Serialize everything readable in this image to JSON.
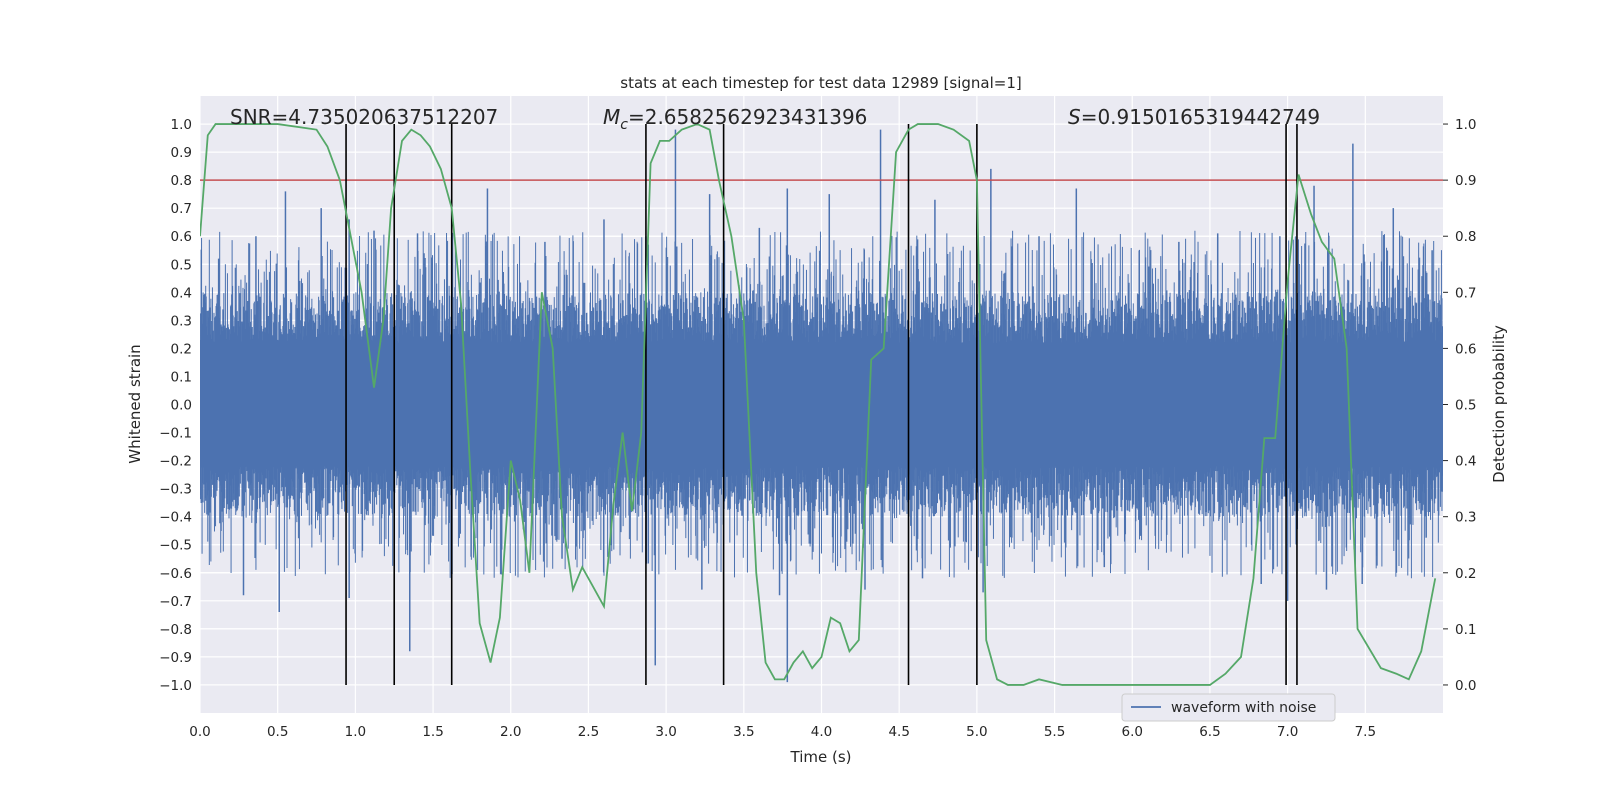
{
  "chart_data": {
    "type": "line",
    "title": "stats at each timestep for test data 12989 [signal=1]",
    "xlabel": "Time (s)",
    "ylabel": "Whitened strain",
    "y2label": "Detection probability",
    "xlim": [
      0,
      8
    ],
    "ylim": [
      -1.1,
      1.1
    ],
    "y2lim": [
      -0.05,
      1.05
    ],
    "xticks": [
      0.0,
      0.5,
      1.0,
      1.5,
      2.0,
      2.5,
      3.0,
      3.5,
      4.0,
      4.5,
      5.0,
      5.5,
      6.0,
      6.5,
      7.0,
      7.5
    ],
    "yticks": [
      -1.0,
      -0.9,
      -0.8,
      -0.7,
      -0.6,
      -0.5,
      -0.4,
      -0.3,
      -0.2,
      -0.1,
      0.0,
      0.1,
      0.2,
      0.3,
      0.4,
      0.5,
      0.6,
      0.7,
      0.8,
      0.9,
      1.0
    ],
    "y2ticks": [
      0.0,
      0.1,
      0.2,
      0.3,
      0.4,
      0.5,
      0.6,
      0.7,
      0.8,
      0.9,
      1.0
    ],
    "grid": true,
    "legend_position": "lower-right",
    "annotations": {
      "snr": "SNR=4.735020637512207",
      "mc_symbol": "M",
      "mc_sub": "c",
      "mc_value": "=2.6582562923431396",
      "s_symbol": "S",
      "s_value": "=0.9150165319442749"
    },
    "series": [
      {
        "name": "waveform with noise",
        "axis": "left",
        "color": "#4c72b0",
        "style": "dense noise, bulk within ±0.4, spikes up to ±0.97",
        "envelope_core": 0.4,
        "peaks": [
          {
            "x": 0.12,
            "y": 0.52
          },
          {
            "x": 0.36,
            "y": 0.6
          },
          {
            "x": 0.55,
            "y": 0.76
          },
          {
            "x": 0.78,
            "y": 0.7
          },
          {
            "x": 0.96,
            "y": 0.66
          },
          {
            "x": 1.12,
            "y": 0.62
          },
          {
            "x": 1.4,
            "y": 0.61
          },
          {
            "x": 1.85,
            "y": 0.77
          },
          {
            "x": 2.22,
            "y": 0.58
          },
          {
            "x": 2.6,
            "y": 0.66
          },
          {
            "x": 2.87,
            "y": 0.6
          },
          {
            "x": 3.06,
            "y": 0.98
          },
          {
            "x": 3.28,
            "y": 0.75
          },
          {
            "x": 3.6,
            "y": 0.63
          },
          {
            "x": 3.78,
            "y": 0.77
          },
          {
            "x": 4.05,
            "y": 0.75
          },
          {
            "x": 4.38,
            "y": 0.98
          },
          {
            "x": 4.73,
            "y": 0.73
          },
          {
            "x": 5.09,
            "y": 0.84
          },
          {
            "x": 5.4,
            "y": 0.6
          },
          {
            "x": 5.64,
            "y": 0.77
          },
          {
            "x": 6.3,
            "y": 0.58
          },
          {
            "x": 6.55,
            "y": 0.61
          },
          {
            "x": 6.95,
            "y": 0.6
          },
          {
            "x": 7.17,
            "y": 0.78
          },
          {
            "x": 7.42,
            "y": 0.93
          },
          {
            "x": 7.68,
            "y": 0.7
          },
          {
            "x": 7.93,
            "y": 0.55
          }
        ],
        "troughs": [
          {
            "x": 0.28,
            "y": -0.68
          },
          {
            "x": 0.51,
            "y": -0.74
          },
          {
            "x": 0.96,
            "y": -0.69
          },
          {
            "x": 1.35,
            "y": -0.88
          },
          {
            "x": 1.62,
            "y": -0.62
          },
          {
            "x": 2.33,
            "y": -0.55
          },
          {
            "x": 2.93,
            "y": -0.93
          },
          {
            "x": 3.23,
            "y": -0.66
          },
          {
            "x": 3.73,
            "y": -0.68
          },
          {
            "x": 3.78,
            "y": -0.99
          },
          {
            "x": 4.28,
            "y": -0.66
          },
          {
            "x": 4.65,
            "y": -0.62
          },
          {
            "x": 5.04,
            "y": -0.67
          },
          {
            "x": 5.82,
            "y": -0.58
          },
          {
            "x": 6.83,
            "y": -0.64
          },
          {
            "x": 7.0,
            "y": -0.7
          },
          {
            "x": 7.25,
            "y": -0.66
          },
          {
            "x": 7.48,
            "y": -0.64
          },
          {
            "x": 7.7,
            "y": -0.6
          }
        ]
      },
      {
        "name": "",
        "axis": "right",
        "color": "#55a868",
        "x": [
          0.0,
          0.05,
          0.1,
          0.25,
          0.5,
          0.75,
          0.82,
          0.9,
          0.97,
          1.04,
          1.12,
          1.18,
          1.23,
          1.3,
          1.36,
          1.42,
          1.48,
          1.55,
          1.62,
          1.68,
          1.74,
          1.8,
          1.87,
          1.93,
          2.0,
          2.06,
          2.12,
          2.2,
          2.27,
          2.33,
          2.4,
          2.46,
          2.52,
          2.6,
          2.66,
          2.72,
          2.78,
          2.84,
          2.9,
          2.96,
          3.02,
          3.1,
          3.2,
          3.28,
          3.34,
          3.42,
          3.5,
          3.58,
          3.64,
          3.7,
          3.76,
          3.82,
          3.88,
          3.94,
          4.0,
          4.06,
          4.12,
          4.18,
          4.24,
          4.32,
          4.4,
          4.48,
          4.56,
          4.62,
          4.68,
          4.75,
          4.85,
          4.95,
          5.0,
          5.06,
          5.13,
          5.2,
          5.3,
          5.4,
          5.55,
          5.7,
          5.9,
          6.2,
          6.5,
          6.6,
          6.7,
          6.78,
          6.85,
          6.92,
          7.0,
          7.07,
          7.15,
          7.22,
          7.3,
          7.38,
          7.45,
          7.6,
          7.7,
          7.78,
          7.86,
          7.95
        ],
        "y": [
          0.8,
          0.98,
          1.0,
          1.0,
          1.0,
          0.99,
          0.96,
          0.9,
          0.8,
          0.7,
          0.53,
          0.65,
          0.85,
          0.97,
          0.99,
          0.98,
          0.96,
          0.92,
          0.85,
          0.68,
          0.38,
          0.11,
          0.04,
          0.12,
          0.4,
          0.33,
          0.2,
          0.7,
          0.6,
          0.3,
          0.17,
          0.21,
          0.18,
          0.14,
          0.32,
          0.45,
          0.31,
          0.45,
          0.93,
          0.97,
          0.97,
          0.99,
          1.0,
          0.99,
          0.9,
          0.8,
          0.65,
          0.2,
          0.04,
          0.01,
          0.01,
          0.04,
          0.06,
          0.03,
          0.05,
          0.12,
          0.11,
          0.06,
          0.08,
          0.58,
          0.6,
          0.95,
          0.99,
          1.0,
          1.0,
          1.0,
          0.99,
          0.97,
          0.9,
          0.08,
          0.01,
          0.0,
          0.0,
          0.01,
          0.0,
          0.0,
          0.0,
          0.0,
          0.0,
          0.02,
          0.05,
          0.19,
          0.44,
          0.44,
          0.72,
          0.91,
          0.84,
          0.79,
          0.76,
          0.6,
          0.1,
          0.03,
          0.02,
          0.01,
          0.06,
          0.19
        ]
      }
    ],
    "threshold": {
      "axis": "left",
      "y": 0.8,
      "color": "#c44e52"
    },
    "vlines": [
      0.94,
      1.25,
      1.62,
      2.87,
      3.37,
      4.56,
      5.0,
      6.99,
      7.06
    ]
  }
}
